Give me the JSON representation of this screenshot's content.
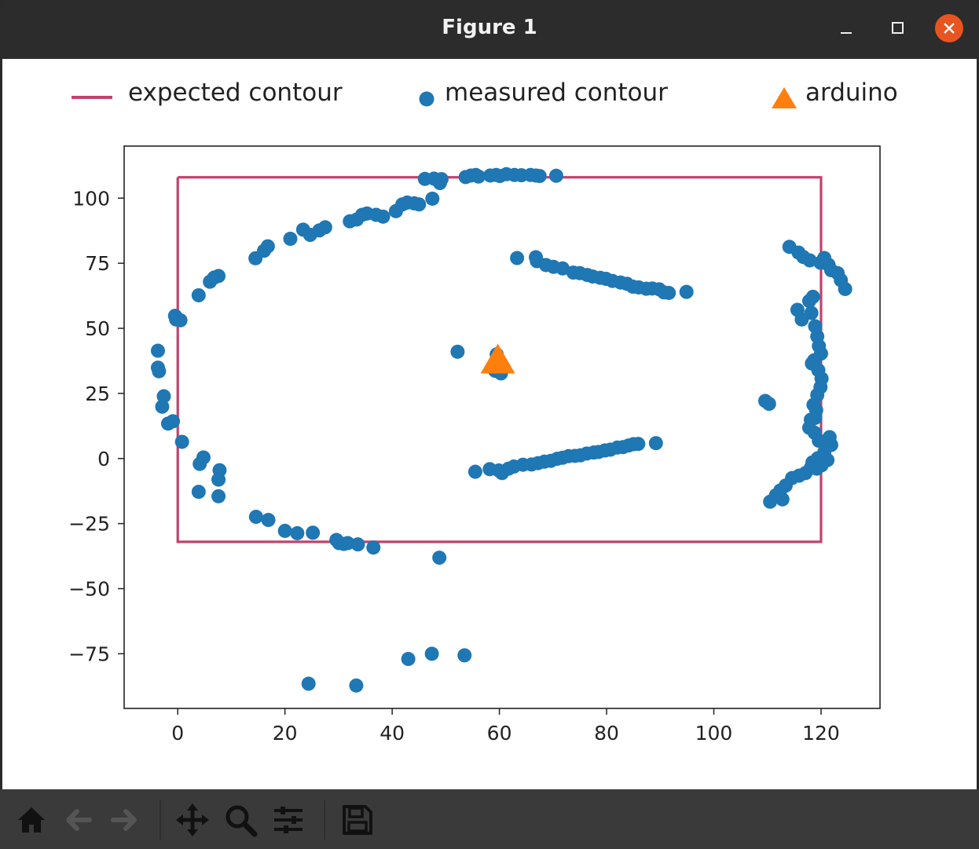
{
  "window": {
    "title": "Figure 1",
    "controls": [
      "minimize",
      "maximize",
      "close"
    ],
    "close_color": "#e95420"
  },
  "legend": {
    "items": [
      {
        "label": "expected contour",
        "marker": "line",
        "color": "#c5416b"
      },
      {
        "label": "measured contour",
        "marker": "circle",
        "color": "#1f77b4"
      },
      {
        "label": "arduino",
        "marker": "triangle",
        "color": "#ff7f0e"
      }
    ]
  },
  "toolbar": {
    "buttons": [
      "home-icon",
      "back-icon",
      "forward-icon",
      "pan-icon",
      "zoom-icon",
      "configure-subplots-icon",
      "save-icon"
    ]
  },
  "chart_data": {
    "type": "scatter",
    "title": "",
    "xlabel": "",
    "ylabel": "",
    "xlim": [
      -10,
      131
    ],
    "ylim": [
      -96,
      120
    ],
    "xticks": [
      0,
      20,
      40,
      60,
      80,
      100,
      120
    ],
    "yticks": [
      -75,
      -50,
      -25,
      0,
      25,
      50,
      75,
      100
    ],
    "grid": false,
    "legend_position": "above plot",
    "series": [
      {
        "name": "expected contour",
        "kind": "line",
        "color": "#c5416b",
        "points": [
          [
            0,
            108
          ],
          [
            120,
            108
          ],
          [
            120,
            -32
          ],
          [
            0,
            -32
          ],
          [
            0,
            108
          ]
        ]
      },
      {
        "name": "measured contour",
        "kind": "scatter",
        "color": "#1f77b4",
        "points": [
          [
            -3.7,
            41.4
          ],
          [
            -3.7,
            34.9
          ],
          [
            -3.5,
            33.5
          ],
          [
            -2.6,
            23.9
          ],
          [
            -2.9,
            19.9
          ],
          [
            -1.8,
            13.4
          ],
          [
            -0.9,
            14.3
          ],
          [
            0.8,
            6.4
          ],
          [
            -0.5,
            54.8
          ],
          [
            -0.3,
            53.4
          ],
          [
            0.5,
            53.1
          ],
          [
            3.9,
            62.7
          ],
          [
            6.0,
            67.9
          ],
          [
            6.8,
            69.5
          ],
          [
            7.6,
            70.1
          ],
          [
            4.8,
            0.4
          ],
          [
            4.1,
            -2.1
          ],
          [
            7.8,
            -4.5
          ],
          [
            7.6,
            -8.1
          ],
          [
            3.9,
            -12.8
          ],
          [
            7.6,
            -14.5
          ],
          [
            14.5,
            76.9
          ],
          [
            16.1,
            79.8
          ],
          [
            16.8,
            81.5
          ],
          [
            21.0,
            84.4
          ],
          [
            23.4,
            87.9
          ],
          [
            24.7,
            85.9
          ],
          [
            26.4,
            87.6
          ],
          [
            27.5,
            88.8
          ],
          [
            14.6,
            -22.4
          ],
          [
            16.9,
            -23.6
          ],
          [
            20.0,
            -27.8
          ],
          [
            22.3,
            -28.7
          ],
          [
            25.2,
            -28.5
          ],
          [
            29.6,
            -31.3
          ],
          [
            30.1,
            -32.5
          ],
          [
            31.0,
            -32.8
          ],
          [
            31.7,
            -32.5
          ],
          [
            33.6,
            -33.0
          ],
          [
            36.5,
            -34.2
          ],
          [
            32.1,
            91.1
          ],
          [
            33.4,
            91.8
          ],
          [
            34.4,
            93.6
          ],
          [
            35.3,
            94.1
          ],
          [
            37.0,
            93.6
          ],
          [
            38.3,
            92.9
          ],
          [
            40.7,
            95.0
          ],
          [
            41.9,
            97.6
          ],
          [
            42.8,
            98.3
          ],
          [
            44.1,
            98.0
          ],
          [
            45.0,
            97.6
          ],
          [
            47.5,
            99.8
          ],
          [
            46.1,
            107.4
          ],
          [
            47.8,
            107.5
          ],
          [
            48.9,
            105.8
          ],
          [
            49.2,
            107.3
          ],
          [
            53.7,
            108.1
          ],
          [
            54.7,
            108.7
          ],
          [
            55.6,
            108.9
          ],
          [
            56.1,
            108.3
          ],
          [
            58.3,
            108.7
          ],
          [
            59.4,
            108.9
          ],
          [
            60.1,
            108.5
          ],
          [
            61.3,
            109.2
          ],
          [
            62.8,
            108.9
          ],
          [
            64.1,
            108.8
          ],
          [
            65.8,
            108.9
          ],
          [
            66.8,
            108.7
          ],
          [
            67.5,
            108.5
          ],
          [
            70.6,
            108.6
          ],
          [
            48.8,
            -38.1
          ],
          [
            43.0,
            -77.0
          ],
          [
            47.4,
            -75.0
          ],
          [
            53.5,
            -75.6
          ],
          [
            24.4,
            -86.5
          ],
          [
            33.3,
            -87.2
          ],
          [
            52.2,
            41.0
          ],
          [
            59.5,
            40.0
          ],
          [
            59.2,
            33.7
          ],
          [
            60.3,
            32.7
          ],
          [
            63.3,
            77.0
          ],
          [
            66.8,
            77.3
          ],
          [
            67.0,
            75.8
          ],
          [
            68.7,
            74.3
          ],
          [
            70.1,
            73.6
          ],
          [
            71.8,
            73.0
          ],
          [
            73.8,
            71.4
          ],
          [
            75.0,
            71.2
          ],
          [
            76.4,
            70.5
          ],
          [
            77.4,
            69.9
          ],
          [
            78.8,
            69.4
          ],
          [
            79.9,
            69.0
          ],
          [
            81.1,
            68.2
          ],
          [
            82.6,
            67.6
          ],
          [
            83.8,
            67.1
          ],
          [
            84.9,
            66.0
          ],
          [
            86.0,
            65.7
          ],
          [
            87.4,
            65.2
          ],
          [
            88.5,
            65.3
          ],
          [
            89.8,
            65.0
          ],
          [
            90.7,
            63.8
          ],
          [
            91.6,
            63.6
          ],
          [
            94.9,
            64.0
          ],
          [
            55.5,
            -5.1
          ],
          [
            58.2,
            -4.1
          ],
          [
            59.9,
            -4.6
          ],
          [
            60.5,
            -5.6
          ],
          [
            61.7,
            -3.9
          ],
          [
            62.7,
            -3.1
          ],
          [
            64.4,
            -2.4
          ],
          [
            66.0,
            -2.3
          ],
          [
            67.2,
            -1.8
          ],
          [
            68.4,
            -1.2
          ],
          [
            69.6,
            -0.9
          ],
          [
            70.8,
            -0.1
          ],
          [
            71.8,
            0.3
          ],
          [
            72.9,
            0.9
          ],
          [
            74.1,
            1.0
          ],
          [
            75.1,
            1.2
          ],
          [
            76.3,
            1.9
          ],
          [
            77.6,
            2.3
          ],
          [
            78.5,
            2.5
          ],
          [
            79.7,
            3.1
          ],
          [
            80.7,
            3.4
          ],
          [
            82.0,
            4.2
          ],
          [
            83.1,
            4.4
          ],
          [
            84.1,
            5.0
          ],
          [
            85.0,
            5.5
          ],
          [
            85.9,
            5.6
          ],
          [
            89.2,
            5.9
          ],
          [
            109.6,
            22.1
          ],
          [
            110.3,
            21.0
          ],
          [
            114.1,
            81.3
          ],
          [
            115.8,
            79.1
          ],
          [
            116.7,
            77.4
          ],
          [
            117.9,
            76.1
          ],
          [
            119.9,
            75.2
          ],
          [
            120.6,
            77.0
          ],
          [
            121.4,
            74.4
          ],
          [
            121.9,
            72.3
          ],
          [
            123.1,
            71.2
          ],
          [
            123.7,
            68.5
          ],
          [
            124.5,
            65.1
          ],
          [
            115.6,
            57.1
          ],
          [
            116.4,
            53.4
          ],
          [
            117.8,
            60.5
          ],
          [
            118.5,
            62.1
          ],
          [
            118.2,
            55.9
          ],
          [
            118.9,
            50.8
          ],
          [
            119.3,
            46.9
          ],
          [
            119.6,
            43.2
          ],
          [
            120.0,
            40.3
          ],
          [
            118.7,
            37.7
          ],
          [
            118.3,
            36.5
          ],
          [
            119.5,
            33.9
          ],
          [
            120.1,
            30.7
          ],
          [
            119.9,
            27.4
          ],
          [
            119.3,
            24.4
          ],
          [
            118.6,
            20.6
          ],
          [
            119.1,
            18.6
          ],
          [
            118.9,
            15.6
          ],
          [
            118.1,
            14.9
          ],
          [
            117.8,
            11.8
          ],
          [
            118.8,
            9.9
          ],
          [
            119.6,
            6.8
          ],
          [
            121.6,
            8.2
          ],
          [
            120.6,
            2.3
          ],
          [
            119.4,
            0.1
          ],
          [
            118.4,
            -1.5
          ],
          [
            118.1,
            -3.6
          ],
          [
            117.1,
            -5.6
          ],
          [
            115.9,
            -6.6
          ],
          [
            114.6,
            -7.5
          ],
          [
            113.4,
            -10.4
          ],
          [
            112.4,
            -12.3
          ],
          [
            111.6,
            -14.1
          ],
          [
            112.8,
            -15.7
          ],
          [
            110.5,
            -16.6
          ],
          [
            119.2,
            -3.9
          ],
          [
            120.1,
            -2.6
          ],
          [
            121.2,
            -0.6
          ],
          [
            121.9,
            5.2
          ]
        ]
      },
      {
        "name": "arduino",
        "kind": "scatter",
        "marker": "triangle",
        "color": "#ff7f0e",
        "points": [
          [
            59.7,
            37.5
          ]
        ]
      }
    ]
  }
}
